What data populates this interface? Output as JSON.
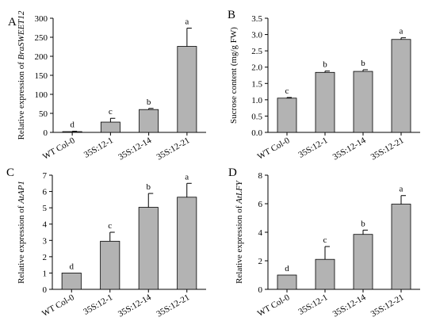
{
  "chart_data": [
    {
      "panel": "A",
      "type": "bar",
      "categories": [
        "WT Col-0",
        "35S:12-1",
        "35S:12-14",
        "35S:12-21"
      ],
      "values": [
        2,
        27,
        60,
        226
      ],
      "errors": [
        1,
        10,
        3,
        48
      ],
      "letters": [
        "d",
        "c",
        "b",
        "a"
      ],
      "ylabel_prefix": "Relative expression of ",
      "ylabel_italic": "BraSWEET12",
      "ylim": [
        0,
        300
      ],
      "yticks": [
        "0",
        "50",
        "100",
        "150",
        "200",
        "250",
        "300"
      ]
    },
    {
      "panel": "B",
      "type": "bar",
      "categories": [
        "WT Col-0",
        "35S:12-1",
        "35S:12-14",
        "35S:12-21"
      ],
      "values": [
        1.05,
        1.84,
        1.87,
        2.85
      ],
      "errors": [
        0.02,
        0.04,
        0.05,
        0.05
      ],
      "letters": [
        "c",
        "b",
        "b",
        "a"
      ],
      "ylabel_prefix": "Sucrose content (mg/g FW)",
      "ylabel_italic": "",
      "ylim": [
        0,
        3.5
      ],
      "yticks": [
        "0.0",
        "0.5",
        "1.0",
        "1.5",
        "2.0",
        "2.5",
        "3.0",
        "3.5"
      ]
    },
    {
      "panel": "C",
      "type": "bar",
      "categories": [
        "WT Col-0",
        "35S:12-1",
        "35S:12-14",
        "35S:12-21"
      ],
      "values": [
        1.0,
        2.95,
        5.03,
        5.65
      ],
      "errors": [
        0.0,
        0.55,
        0.85,
        0.85
      ],
      "letters": [
        "d",
        "c",
        "b",
        "a"
      ],
      "ylabel_prefix": "Relative expression of ",
      "ylabel_italic": "AtAP1",
      "ylim": [
        0,
        7
      ],
      "yticks": [
        "0",
        "1",
        "2",
        "3",
        "4",
        "5",
        "6",
        "7"
      ]
    },
    {
      "panel": "D",
      "type": "bar",
      "categories": [
        "WT Col-0",
        "35S:12-1",
        "35S:12-14",
        "35S:12-21"
      ],
      "values": [
        1.0,
        2.1,
        3.85,
        5.97
      ],
      "errors": [
        0.0,
        0.9,
        0.3,
        0.6
      ],
      "letters": [
        "d",
        "c",
        "b",
        "a"
      ],
      "ylabel_prefix": "Relative expression of ",
      "ylabel_italic": "AtLFY",
      "ylim": [
        0,
        8
      ],
      "yticks": [
        "0",
        "2",
        "4",
        "6",
        "8"
      ]
    }
  ],
  "colors": {
    "bar_fill": "#b3b3b3",
    "bar_stroke": "#000000",
    "axis": "#000000"
  }
}
